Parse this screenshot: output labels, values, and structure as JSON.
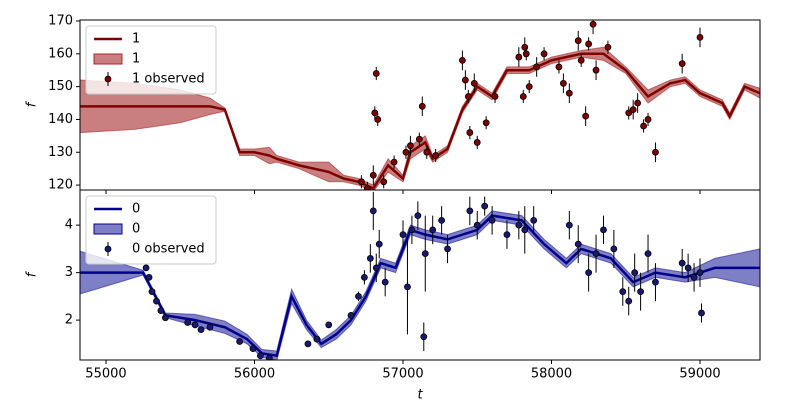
{
  "chart_data": [
    {
      "type": "line",
      "ylabel": "f",
      "xlim": [
        54825,
        59404
      ],
      "ylim": [
        118.5,
        170.3
      ],
      "yticks": [
        120,
        130,
        140,
        150,
        160,
        170
      ],
      "legend": "upper left",
      "x": [
        54825,
        55200,
        55500,
        55700,
        55800,
        55900,
        56000,
        56100,
        56150,
        56300,
        56500,
        56600,
        56700,
        56800,
        56900,
        57000,
        57050,
        57150,
        57200,
        57300,
        57400,
        57500,
        57600,
        57700,
        57850,
        58000,
        58200,
        58350,
        58500,
        58650,
        58800,
        58900,
        59000,
        59150,
        59200,
        59300,
        59404
      ],
      "series": [
        {
          "name": "1",
          "type": "line",
          "color": "#800000",
          "values": [
            144,
            144,
            144,
            144,
            143,
            130,
            130,
            129,
            128,
            126,
            124,
            122,
            121,
            119,
            126,
            122,
            130,
            133,
            128,
            131,
            143,
            150,
            147,
            155,
            155,
            158,
            160,
            160,
            155,
            147,
            151,
            152,
            148,
            145,
            141,
            150,
            148
          ]
        },
        {
          "name": "1",
          "type": "band",
          "color": "#a52a2a",
          "alpha": 0.6,
          "lower": [
            136,
            137,
            139,
            141.5,
            142.5,
            129,
            129,
            126.5,
            127,
            125,
            121,
            121,
            120,
            118,
            124,
            121,
            128,
            131,
            127,
            130,
            142,
            149,
            146,
            154,
            154,
            157,
            159,
            158,
            154,
            145,
            150,
            151,
            147,
            144,
            140,
            149,
            146.5
          ],
          "upper": [
            152,
            151,
            149,
            146.5,
            143.5,
            131,
            131,
            131.5,
            129,
            127,
            127,
            123,
            122,
            120,
            128,
            123,
            132,
            135,
            129,
            132,
            144,
            151,
            148,
            156,
            156,
            159,
            161,
            162,
            156,
            149,
            152,
            153,
            149,
            146,
            142,
            151,
            149.5
          ]
        },
        {
          "name": "1 observed",
          "type": "errorbar",
          "color": "#800000",
          "x": [
            56720,
            56760,
            56800,
            56810,
            56820,
            56830,
            56870,
            56940,
            57020,
            57050,
            57110,
            57130,
            57160,
            57220,
            57400,
            57420,
            57440,
            57450,
            57480,
            57500,
            57560,
            57620,
            57780,
            57810,
            57820,
            57830,
            57850,
            57900,
            57950,
            58050,
            58080,
            58120,
            58180,
            58200,
            58230,
            58250,
            58280,
            58300,
            58380,
            58520,
            58550,
            58580,
            58620,
            58650,
            58700,
            58880,
            59000
          ],
          "values": [
            121,
            119,
            123,
            142,
            154,
            140,
            121,
            127,
            130,
            132,
            134,
            144,
            130,
            129,
            158,
            152,
            147,
            136,
            151,
            133,
            139,
            147,
            159,
            147,
            162,
            160,
            150,
            156,
            160,
            156,
            151,
            148,
            164,
            158,
            141,
            163,
            169,
            155,
            162,
            142,
            143,
            145,
            138,
            140,
            130,
            157,
            165
          ],
          "errors": [
            2,
            2,
            3,
            2,
            2,
            2,
            2,
            2,
            2,
            3,
            2,
            3,
            2,
            2,
            3,
            3,
            2,
            2,
            3,
            2,
            2,
            2,
            3,
            2,
            3,
            2,
            2,
            3,
            2,
            2,
            3,
            3,
            3,
            2,
            3,
            2,
            3,
            3,
            2,
            2,
            3,
            3,
            2,
            2,
            3,
            3,
            3
          ]
        }
      ]
    },
    {
      "type": "line",
      "ylabel": "f",
      "xlabel": "t",
      "xlim": [
        54825,
        59404
      ],
      "ylim": [
        1.16,
        4.74
      ],
      "yticks": [
        2,
        3,
        4
      ],
      "xticks": [
        55000,
        56000,
        57000,
        58000,
        59000
      ],
      "legend": "upper left",
      "x": [
        54825,
        55250,
        55300,
        55400,
        55600,
        55800,
        55950,
        56050,
        56150,
        56250,
        56350,
        56450,
        56550,
        56650,
        56750,
        56850,
        56950,
        57050,
        57150,
        57300,
        57500,
        57600,
        57800,
        57950,
        58100,
        58200,
        58400,
        58550,
        58700,
        58900,
        59100,
        59404
      ],
      "series": [
        {
          "name": "0",
          "type": "line",
          "color": "#00008b",
          "values": [
            3.0,
            3.0,
            2.7,
            2.1,
            2.0,
            1.85,
            1.6,
            1.3,
            1.25,
            2.5,
            1.9,
            1.5,
            1.7,
            2.0,
            2.5,
            3.2,
            3.1,
            3.9,
            3.8,
            3.7,
            3.9,
            4.2,
            4.1,
            3.6,
            3.2,
            3.5,
            3.3,
            2.8,
            3.0,
            2.9,
            3.1,
            3.1
          ]
        },
        {
          "name": "0",
          "type": "band",
          "color": "#00008b",
          "alpha": 0.5,
          "lower": [
            2.55,
            2.95,
            2.65,
            2.05,
            1.88,
            1.72,
            1.5,
            1.22,
            1.15,
            2.35,
            1.8,
            1.42,
            1.6,
            1.9,
            2.4,
            3.1,
            3.0,
            3.8,
            3.7,
            3.6,
            3.8,
            4.1,
            4.0,
            3.5,
            3.1,
            3.4,
            3.2,
            2.7,
            2.9,
            2.8,
            2.9,
            2.7
          ],
          "upper": [
            3.45,
            3.05,
            2.75,
            2.15,
            2.12,
            1.98,
            1.7,
            1.38,
            1.35,
            2.65,
            2.0,
            1.58,
            1.8,
            2.1,
            2.6,
            3.3,
            3.2,
            4.0,
            3.9,
            3.8,
            4.0,
            4.3,
            4.2,
            3.7,
            3.3,
            3.6,
            3.4,
            2.9,
            3.1,
            3.0,
            3.3,
            3.5
          ]
        },
        {
          "name": "0 observed",
          "type": "errorbar",
          "color": "#191970",
          "x": [
            55270,
            55290,
            55310,
            55340,
            55370,
            55400,
            55550,
            55600,
            55640,
            55700,
            55900,
            55990,
            56040,
            56100,
            56360,
            56420,
            56500,
            56650,
            56700,
            56740,
            56780,
            56800,
            56820,
            56840,
            56880,
            57000,
            57030,
            57060,
            57100,
            57140,
            57150,
            57200,
            57260,
            57300,
            57450,
            57500,
            57550,
            57600,
            57700,
            57780,
            57820,
            57880,
            58120,
            58180,
            58250,
            58300,
            58350,
            58420,
            58480,
            58520,
            58560,
            58600,
            58650,
            58700,
            58880,
            58920,
            58960,
            59000,
            59010
          ],
          "values": [
            3.1,
            2.9,
            2.6,
            2.4,
            2.2,
            2.05,
            1.95,
            1.9,
            1.8,
            1.85,
            1.55,
            1.4,
            1.25,
            1.2,
            1.5,
            1.6,
            1.9,
            2.1,
            2.5,
            2.9,
            3.3,
            4.3,
            3.1,
            3.6,
            2.8,
            3.8,
            2.7,
            3.9,
            4.2,
            1.65,
            3.4,
            3.9,
            4.1,
            3.5,
            4.3,
            4.0,
            4.4,
            4.1,
            3.8,
            4.0,
            3.9,
            4.1,
            4.0,
            3.6,
            3.0,
            3.4,
            3.9,
            3.5,
            2.6,
            2.4,
            3.0,
            2.6,
            3.4,
            2.8,
            3.2,
            3.1,
            2.9,
            3.0,
            2.15
          ],
          "errors": [
            0.05,
            0.05,
            0.05,
            0.05,
            0.05,
            0.05,
            0.05,
            0.05,
            0.05,
            0.05,
            0.05,
            0.05,
            0.05,
            0.05,
            0.05,
            0.05,
            0.05,
            0.05,
            0.1,
            0.15,
            0.3,
            0.4,
            0.3,
            0.3,
            0.3,
            0.3,
            1,
            0.3,
            0.3,
            0.3,
            0.8,
            0.3,
            0.3,
            0.3,
            0.3,
            0.3,
            0.2,
            0.3,
            0.3,
            0.3,
            0.5,
            0.3,
            0.3,
            0.4,
            0.4,
            0.4,
            0.3,
            0.4,
            0.3,
            0.3,
            0.4,
            0.4,
            0.4,
            0.4,
            0.3,
            0.3,
            0.3,
            0.3,
            0.2
          ]
        }
      ]
    }
  ]
}
